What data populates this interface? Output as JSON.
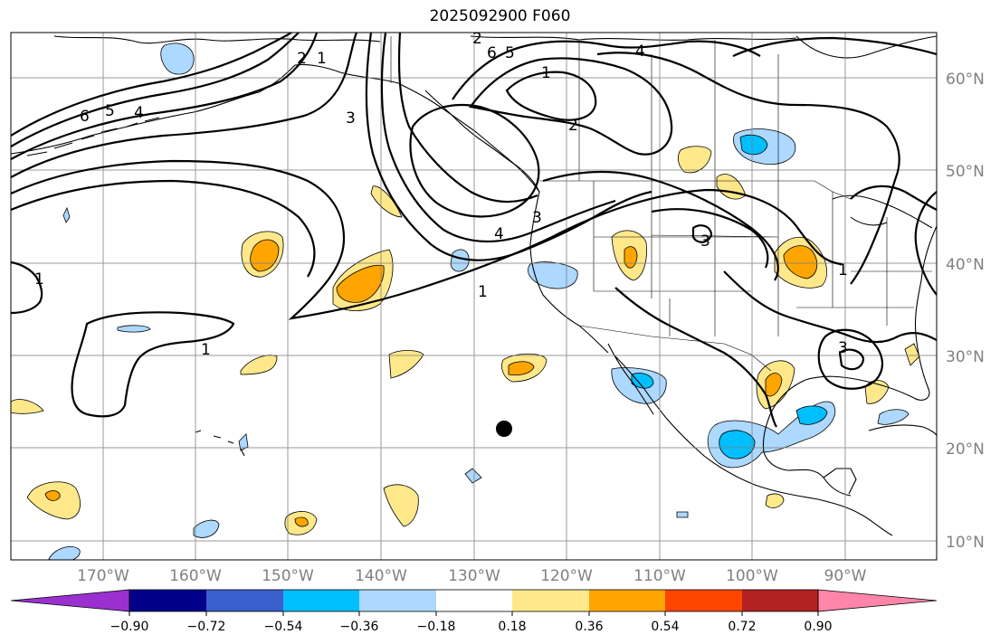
{
  "title": "2025092900 F060",
  "map": {
    "lat_labels": [
      "60°N",
      "50°N",
      "40°N",
      "30°N",
      "20°N",
      "10°N"
    ],
    "lon_labels": [
      "170°W",
      "160°W",
      "150°W",
      "140°W",
      "130°W",
      "120°W",
      "110°W",
      "100°W",
      "90°W"
    ],
    "contour_labels": [
      "6",
      "5",
      "4",
      "3",
      "2",
      "1",
      "6",
      "5",
      "1",
      "2",
      "4",
      "3",
      "4",
      "3",
      "1",
      "1",
      "1",
      "3",
      "1",
      "2"
    ],
    "marker": "black-dot"
  },
  "colorbar": {
    "ticks": [
      "−0.90",
      "−0.72",
      "−0.54",
      "−0.36",
      "−0.18",
      "0.18",
      "0.36",
      "0.54",
      "0.72",
      "0.90"
    ],
    "colors": [
      "#9b30d0",
      "#00008b",
      "#3a5fcd",
      "#00bfff",
      "#add8ff",
      "#ffffff",
      "#ffe88a",
      "#ffa500",
      "#ff4500",
      "#b22222",
      "#ff85aa"
    ]
  },
  "colors": {
    "light_blue": "#add8ff",
    "blue": "#00bfff",
    "yellow": "#ffe88a",
    "orange": "#ffa500",
    "land_line": "#000000",
    "grid": "#808080"
  }
}
